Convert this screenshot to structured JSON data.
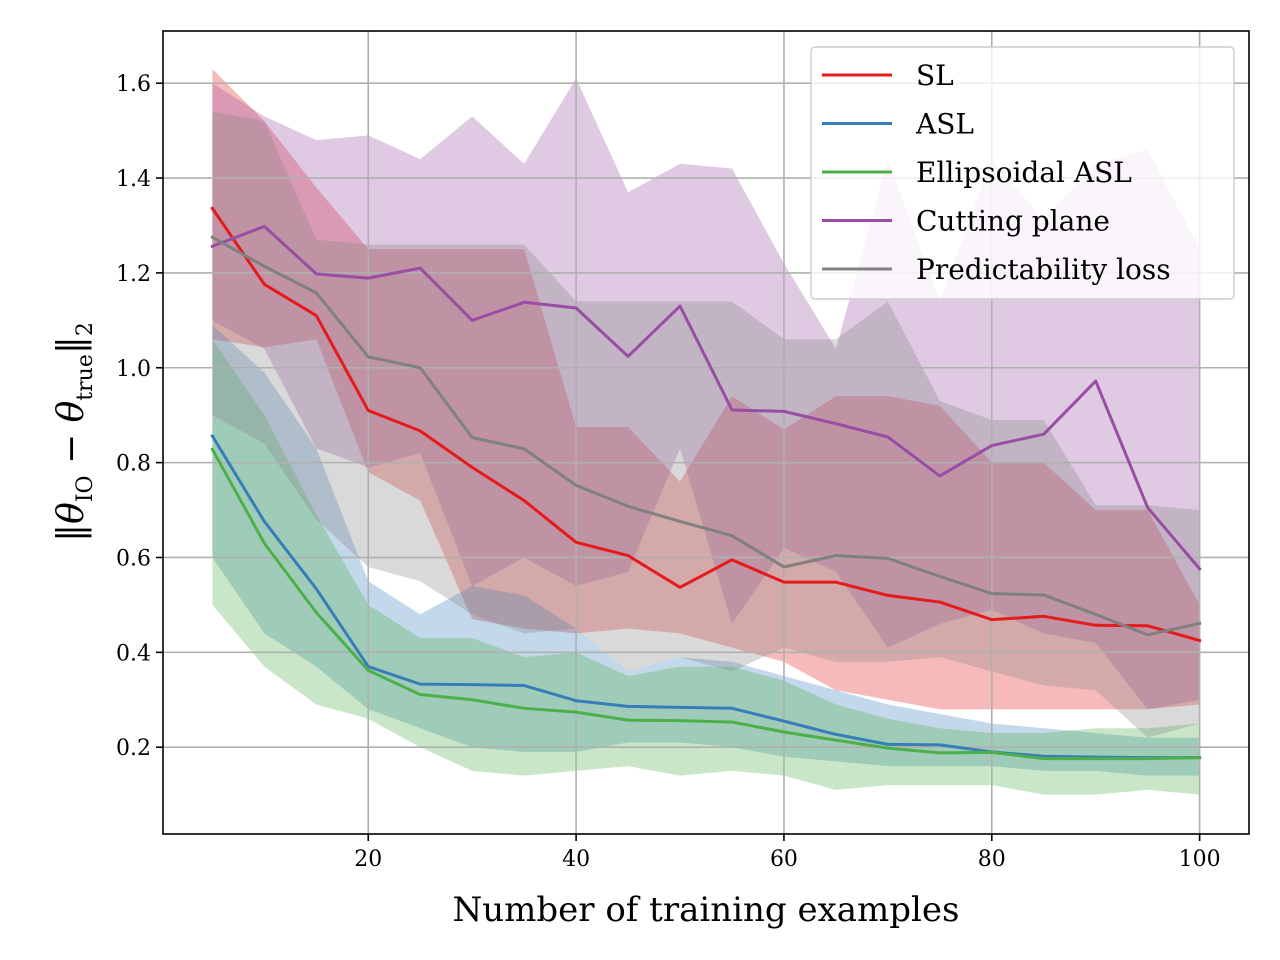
{
  "chart_data": {
    "type": "line",
    "title": "",
    "xlabel": "Number of training examples",
    "ylabel": "‖θIO − θtrue‖2",
    "ylabel_parts": {
      "open": "‖",
      "theta": "θ",
      "sub1": "IO",
      "minus": " − ",
      "sub2": "true",
      "close": "‖",
      "sub3": "2"
    },
    "xlim": [
      0.25,
      104.75
    ],
    "ylim": [
      0.017,
      1.71
    ],
    "xticks": [
      20,
      40,
      60,
      80,
      100
    ],
    "yticks": [
      0.2,
      0.4,
      0.6,
      0.8,
      1.0,
      1.2,
      1.4,
      1.6
    ],
    "ytick_labels": [
      "0.2",
      "0.4",
      "0.6",
      "0.8",
      "1.0",
      "1.2",
      "1.4",
      "1.6"
    ],
    "xtick_labels": [
      "20",
      "40",
      "60",
      "80",
      "100"
    ],
    "grid": true,
    "legend_position": "top-right",
    "x": [
      5,
      10,
      15,
      20,
      25,
      30,
      35,
      40,
      45,
      50,
      55,
      60,
      65,
      70,
      75,
      80,
      85,
      90,
      95,
      100
    ],
    "series": [
      {
        "name": "SL",
        "color": "#e41a1c",
        "values": [
          1.336,
          1.176,
          1.11,
          0.91,
          0.867,
          0.79,
          0.72,
          0.632,
          0.604,
          0.537,
          0.595,
          0.548,
          0.548,
          0.52,
          0.506,
          0.469,
          0.476,
          0.457,
          0.456,
          0.425
        ],
        "lower": [
          1.06,
          1.043,
          1.06,
          0.78,
          0.72,
          0.47,
          0.45,
          0.44,
          0.45,
          0.44,
          0.41,
          0.38,
          0.32,
          0.3,
          0.28,
          0.28,
          0.28,
          0.28,
          0.28,
          0.29
        ],
        "upper": [
          1.63,
          1.52,
          1.38,
          1.25,
          1.25,
          1.25,
          1.25,
          0.875,
          0.875,
          0.76,
          0.94,
          0.87,
          0.94,
          0.94,
          0.92,
          0.8,
          0.8,
          0.7,
          0.7,
          0.5
        ]
      },
      {
        "name": "ASL",
        "color": "#377eb8",
        "values": [
          0.856,
          0.676,
          0.534,
          0.37,
          0.333,
          0.332,
          0.33,
          0.298,
          0.286,
          0.284,
          0.282,
          0.255,
          0.227,
          0.206,
          0.205,
          0.19,
          0.181,
          0.179,
          0.178,
          0.178
        ],
        "lower": [
          0.6,
          0.44,
          0.37,
          0.28,
          0.24,
          0.2,
          0.19,
          0.19,
          0.21,
          0.21,
          0.2,
          0.18,
          0.17,
          0.16,
          0.16,
          0.16,
          0.15,
          0.15,
          0.14,
          0.14
        ],
        "upper": [
          1.09,
          0.99,
          0.83,
          0.55,
          0.48,
          0.54,
          0.52,
          0.45,
          0.36,
          0.39,
          0.38,
          0.35,
          0.32,
          0.29,
          0.27,
          0.25,
          0.24,
          0.23,
          0.22,
          0.22
        ]
      },
      {
        "name": "Ellipsoidal ASL",
        "color": "#4daf4a",
        "values": [
          0.828,
          0.63,
          0.484,
          0.362,
          0.311,
          0.3,
          0.282,
          0.274,
          0.257,
          0.256,
          0.253,
          0.232,
          0.215,
          0.198,
          0.188,
          0.189,
          0.176,
          0.176,
          0.176,
          0.178
        ],
        "lower": [
          0.5,
          0.37,
          0.29,
          0.26,
          0.2,
          0.15,
          0.14,
          0.15,
          0.16,
          0.14,
          0.15,
          0.14,
          0.11,
          0.12,
          0.12,
          0.12,
          0.1,
          0.1,
          0.11,
          0.1
        ],
        "upper": [
          1.06,
          0.9,
          0.69,
          0.5,
          0.43,
          0.43,
          0.39,
          0.4,
          0.35,
          0.37,
          0.37,
          0.34,
          0.29,
          0.26,
          0.24,
          0.23,
          0.23,
          0.24,
          0.24,
          0.25
        ]
      },
      {
        "name": "Cutting plane",
        "color": "#984ea3",
        "values": [
          1.256,
          1.298,
          1.198,
          1.189,
          1.21,
          1.1,
          1.138,
          1.126,
          1.024,
          1.13,
          0.911,
          0.908,
          0.882,
          0.854,
          0.772,
          0.836,
          0.86,
          0.972,
          0.705,
          0.576
        ],
        "lower": [
          1.1,
          1.04,
          0.83,
          0.79,
          0.82,
          0.54,
          0.6,
          0.54,
          0.57,
          0.83,
          0.46,
          0.62,
          0.57,
          0.41,
          0.46,
          0.49,
          0.44,
          0.42,
          0.28,
          0.3
        ],
        "upper": [
          1.6,
          1.53,
          1.48,
          1.49,
          1.44,
          1.53,
          1.43,
          1.61,
          1.37,
          1.43,
          1.42,
          1.22,
          1.04,
          1.44,
          1.14,
          1.44,
          1.31,
          1.43,
          1.46,
          1.25
        ]
      },
      {
        "name": "Predictability loss",
        "color": "#808080",
        "values": [
          1.275,
          1.214,
          1.158,
          1.023,
          1.0,
          0.853,
          0.829,
          0.752,
          0.708,
          0.676,
          0.646,
          0.58,
          0.604,
          0.598,
          0.56,
          0.524,
          0.521,
          0.48,
          0.437,
          0.461
        ],
        "lower": [
          0.9,
          0.84,
          0.68,
          0.58,
          0.55,
          0.48,
          0.44,
          0.45,
          0.36,
          0.39,
          0.36,
          0.41,
          0.38,
          0.38,
          0.39,
          0.36,
          0.33,
          0.32,
          0.22,
          0.25
        ],
        "upper": [
          1.54,
          1.52,
          1.27,
          1.26,
          1.26,
          1.26,
          1.26,
          1.14,
          1.14,
          1.14,
          1.14,
          1.06,
          1.06,
          1.14,
          0.93,
          0.89,
          0.89,
          0.71,
          0.71,
          0.7
        ]
      }
    ]
  }
}
